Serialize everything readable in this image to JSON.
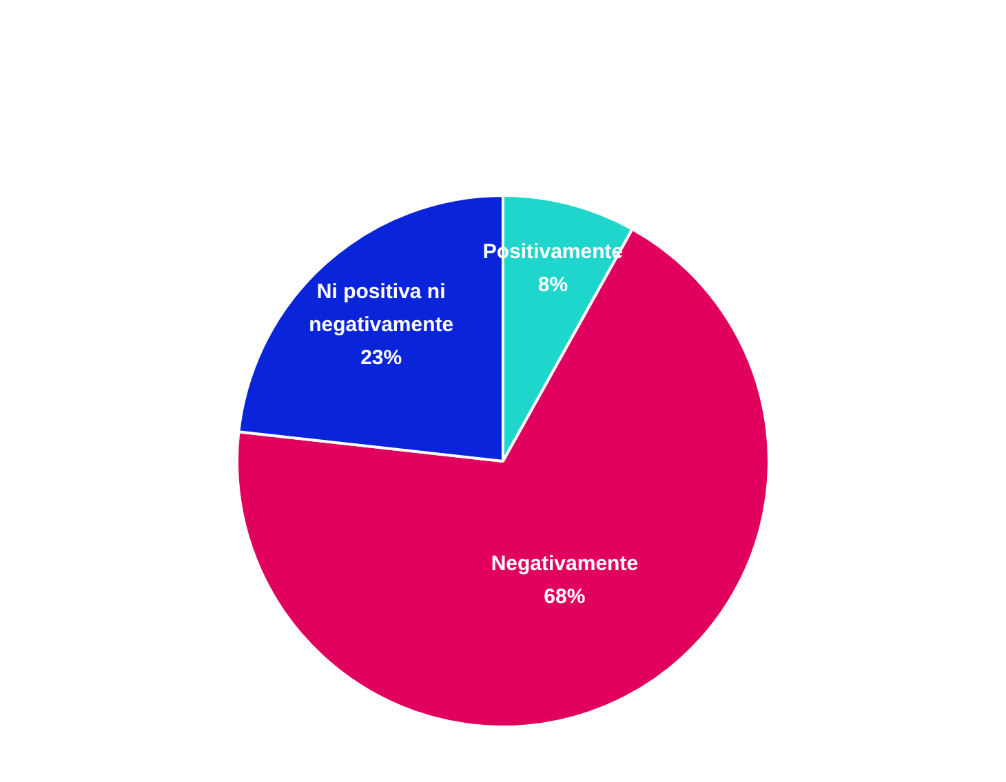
{
  "chart_data": {
    "type": "pie",
    "categories": [
      "Positivamente",
      "Negativamente",
      "Ni positiva ni negativamente"
    ],
    "values": [
      8,
      68,
      23
    ],
    "colors": [
      "#1ed6cb",
      "#e2005f",
      "#0a24d9"
    ],
    "value_labels": [
      "8%",
      "68%",
      "23%"
    ],
    "legend": false
  }
}
